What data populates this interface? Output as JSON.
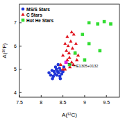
{
  "chart_data": {
    "type": "scatter",
    "x_label": "A(¹²C)",
    "y_label": "A(¹⁹F)",
    "xlim": [
      7.5,
      9.8
    ],
    "ylim": [
      3.8,
      7.8
    ],
    "xticks": [
      7.5,
      {
        "value": 8,
        "label": "8"
      },
      8.5,
      9,
      9.5
    ],
    "yticks": [
      4,
      5,
      6,
      7
    ],
    "legend": "top-left",
    "series": [
      {
        "name": "MS/S Stars",
        "color": "#1f35d6",
        "marker": "circle",
        "x": [
          8.18,
          8.22,
          8.25,
          8.28,
          8.3,
          8.32,
          8.35,
          8.36,
          8.38,
          8.4,
          8.42,
          8.43,
          8.45,
          8.47,
          8.5,
          8.52,
          8.33,
          8.26,
          8.44,
          8.39
        ],
        "values": [
          4.85,
          4.75,
          4.95,
          4.7,
          4.9,
          4.8,
          5.0,
          4.75,
          4.9,
          4.85,
          5.05,
          4.7,
          4.95,
          4.8,
          4.9,
          5.1,
          5.1,
          4.6,
          4.6,
          5.2
        ]
      },
      {
        "name": "C Stars",
        "color": "#e0141e",
        "marker": "triangle",
        "x": [
          8.45,
          8.5,
          8.55,
          8.58,
          8.6,
          8.62,
          8.65,
          8.68,
          8.7,
          8.72,
          8.75,
          8.78,
          8.8,
          8.85,
          8.6,
          8.66,
          8.55,
          8.74,
          8.82,
          8.64,
          8.5,
          8.7
        ],
        "values": [
          5.2,
          5.6,
          5.0,
          5.8,
          5.4,
          6.0,
          5.5,
          6.2,
          5.3,
          5.9,
          6.5,
          5.7,
          6.1,
          5.6,
          6.4,
          5.1,
          6.1,
          5.2,
          5.4,
          5.7,
          5.0,
          6.6
        ]
      },
      {
        "name": "Hot He Stars",
        "color": "#33dd33",
        "marker": "square",
        "x": [
          9.1,
          9.3,
          9.45,
          9.6,
          8.95,
          9.1,
          9.35,
          8.78,
          8.65,
          9.0
        ],
        "values": [
          7.0,
          6.95,
          7.05,
          6.95,
          6.5,
          6.1,
          5.8,
          5.7,
          5.2,
          5.4
        ]
      }
    ],
    "annotations": [
      {
        "text": "HE1305+0132",
        "x": 8.57,
        "y": 5.3,
        "color": "#e020e0",
        "marker": "square"
      }
    ]
  }
}
